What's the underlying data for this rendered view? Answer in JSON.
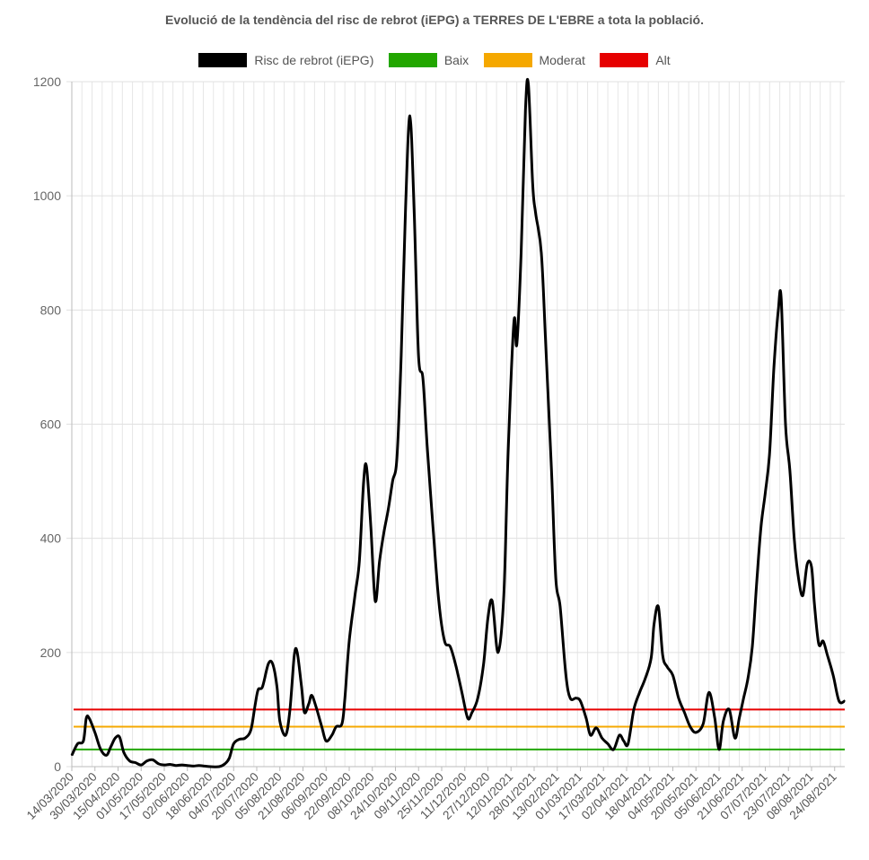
{
  "chart_data": {
    "type": "line",
    "title": "Evolució de la tendència del risc de rebrot (iEPG) a TERRES DE L'EBRE a tota la població.",
    "xlabel": "",
    "ylabel": "",
    "ylim": [
      0,
      1200
    ],
    "y_ticks": [
      0,
      200,
      400,
      600,
      800,
      1000,
      1200
    ],
    "grid": true,
    "legend_position": "top-center",
    "x_range": [
      "14/03/2020",
      "31/08/2021"
    ],
    "x_tick_labels": [
      "14/03/2020",
      "30/03/2020",
      "15/04/2020",
      "01/05/2020",
      "17/05/2020",
      "02/06/2020",
      "18/06/2020",
      "04/07/2020",
      "20/07/2020",
      "05/08/2020",
      "21/08/2020",
      "06/09/2020",
      "22/09/2020",
      "08/10/2020",
      "24/10/2020",
      "09/11/2020",
      "25/11/2020",
      "11/12/2020",
      "27/12/2020",
      "12/01/2021",
      "28/01/2021",
      "13/02/2021",
      "01/03/2021",
      "17/03/2021",
      "02/04/2021",
      "18/04/2021",
      "04/05/2021",
      "20/05/2021",
      "05/06/2021",
      "21/06/2021",
      "07/07/2021",
      "23/07/2021",
      "08/08/2021",
      "24/08/2021"
    ],
    "series": [
      {
        "name": "Risc de rebrot (iEPG)",
        "color": "#000000",
        "points": [
          [
            "14/03/2020",
            20
          ],
          [
            "18/03/2020",
            40
          ],
          [
            "22/03/2020",
            45
          ],
          [
            "24/03/2020",
            85
          ],
          [
            "26/03/2020",
            85
          ],
          [
            "30/03/2020",
            60
          ],
          [
            "03/04/2020",
            30
          ],
          [
            "07/04/2020",
            20
          ],
          [
            "10/04/2020",
            35
          ],
          [
            "13/04/2020",
            50
          ],
          [
            "16/04/2020",
            52
          ],
          [
            "19/04/2020",
            25
          ],
          [
            "23/04/2020",
            10
          ],
          [
            "27/04/2020",
            7
          ],
          [
            "01/05/2020",
            3
          ],
          [
            "05/05/2020",
            10
          ],
          [
            "09/05/2020",
            12
          ],
          [
            "13/05/2020",
            5
          ],
          [
            "17/05/2020",
            3
          ],
          [
            "21/05/2020",
            4
          ],
          [
            "25/05/2020",
            2
          ],
          [
            "29/05/2020",
            3
          ],
          [
            "02/06/2020",
            2
          ],
          [
            "06/06/2020",
            1
          ],
          [
            "10/06/2020",
            2
          ],
          [
            "14/06/2020",
            1
          ],
          [
            "18/06/2020",
            0
          ],
          [
            "24/06/2020",
            0
          ],
          [
            "28/06/2020",
            5
          ],
          [
            "01/07/2020",
            15
          ],
          [
            "04/07/2020",
            40
          ],
          [
            "08/07/2020",
            48
          ],
          [
            "12/07/2020",
            50
          ],
          [
            "16/07/2020",
            65
          ],
          [
            "19/07/2020",
            110
          ],
          [
            "21/07/2020",
            135
          ],
          [
            "24/07/2020",
            140
          ],
          [
            "28/07/2020",
            180
          ],
          [
            "31/07/2020",
            180
          ],
          [
            "03/08/2020",
            140
          ],
          [
            "05/08/2020",
            80
          ],
          [
            "09/08/2020",
            55
          ],
          [
            "12/08/2020",
            100
          ],
          [
            "15/08/2020",
            195
          ],
          [
            "17/08/2020",
            200
          ],
          [
            "20/08/2020",
            140
          ],
          [
            "22/08/2020",
            95
          ],
          [
            "25/08/2020",
            110
          ],
          [
            "27/08/2020",
            125
          ],
          [
            "30/08/2020",
            105
          ],
          [
            "03/09/2020",
            70
          ],
          [
            "06/09/2020",
            45
          ],
          [
            "10/09/2020",
            55
          ],
          [
            "13/09/2020",
            70
          ],
          [
            "17/09/2020",
            75
          ],
          [
            "19/09/2020",
            120
          ],
          [
            "22/09/2020",
            220
          ],
          [
            "26/09/2020",
            300
          ],
          [
            "29/09/2020",
            360
          ],
          [
            "02/10/2020",
            500
          ],
          [
            "04/10/2020",
            525
          ],
          [
            "07/10/2020",
            420
          ],
          [
            "10/10/2020",
            290
          ],
          [
            "13/10/2020",
            360
          ],
          [
            "16/10/2020",
            410
          ],
          [
            "19/10/2020",
            450
          ],
          [
            "22/10/2020",
            500
          ],
          [
            "25/10/2020",
            540
          ],
          [
            "28/10/2020",
            720
          ],
          [
            "31/10/2020",
            980
          ],
          [
            "03/11/2020",
            1140
          ],
          [
            "06/11/2020",
            970
          ],
          [
            "09/11/2020",
            720
          ],
          [
            "12/11/2020",
            680
          ],
          [
            "15/11/2020",
            560
          ],
          [
            "19/11/2020",
            420
          ],
          [
            "23/11/2020",
            290
          ],
          [
            "27/11/2020",
            220
          ],
          [
            "01/12/2020",
            210
          ],
          [
            "05/12/2020",
            175
          ],
          [
            "09/12/2020",
            130
          ],
          [
            "13/12/2020",
            85
          ],
          [
            "16/12/2020",
            95
          ],
          [
            "20/12/2020",
            120
          ],
          [
            "24/12/2020",
            180
          ],
          [
            "27/12/2020",
            260
          ],
          [
            "30/12/2020",
            290
          ],
          [
            "03/01/2021",
            200
          ],
          [
            "07/01/2021",
            300
          ],
          [
            "10/01/2021",
            550
          ],
          [
            "14/01/2021",
            780
          ],
          [
            "16/01/2021",
            740
          ],
          [
            "19/01/2021",
            900
          ],
          [
            "22/01/2021",
            1150
          ],
          [
            "24/01/2021",
            1195
          ],
          [
            "27/01/2021",
            1020
          ],
          [
            "29/01/2021",
            970
          ],
          [
            "02/02/2021",
            900
          ],
          [
            "05/02/2021",
            740
          ],
          [
            "09/02/2021",
            520
          ],
          [
            "12/02/2021",
            330
          ],
          [
            "15/02/2021",
            280
          ],
          [
            "19/02/2021",
            160
          ],
          [
            "22/02/2021",
            120
          ],
          [
            "26/02/2021",
            120
          ],
          [
            "01/03/2021",
            115
          ],
          [
            "05/03/2021",
            85
          ],
          [
            "08/03/2021",
            55
          ],
          [
            "12/03/2021",
            68
          ],
          [
            "16/03/2021",
            50
          ],
          [
            "20/03/2021",
            40
          ],
          [
            "24/03/2021",
            30
          ],
          [
            "28/03/2021",
            55
          ],
          [
            "31/03/2021",
            45
          ],
          [
            "03/04/2021",
            40
          ],
          [
            "07/04/2021",
            100
          ],
          [
            "11/04/2021",
            130
          ],
          [
            "15/04/2021",
            155
          ],
          [
            "19/04/2021",
            190
          ],
          [
            "21/04/2021",
            250
          ],
          [
            "24/04/2021",
            280
          ],
          [
            "27/04/2021",
            195
          ],
          [
            "30/04/2021",
            175
          ],
          [
            "04/05/2021",
            160
          ],
          [
            "08/05/2021",
            120
          ],
          [
            "12/05/2021",
            95
          ],
          [
            "16/05/2021",
            70
          ],
          [
            "20/05/2021",
            60
          ],
          [
            "25/05/2021",
            75
          ],
          [
            "29/05/2021",
            130
          ],
          [
            "02/06/2021",
            85
          ],
          [
            "05/06/2021",
            30
          ],
          [
            "08/06/2021",
            80
          ],
          [
            "12/06/2021",
            100
          ],
          [
            "16/06/2021",
            50
          ],
          [
            "19/06/2021",
            85
          ],
          [
            "22/06/2021",
            120
          ],
          [
            "25/06/2021",
            155
          ],
          [
            "28/06/2021",
            210
          ],
          [
            "01/07/2021",
            320
          ],
          [
            "04/07/2021",
            420
          ],
          [
            "07/07/2021",
            480
          ],
          [
            "10/07/2021",
            550
          ],
          [
            "13/07/2021",
            700
          ],
          [
            "16/07/2021",
            800
          ],
          [
            "18/07/2021",
            820
          ],
          [
            "21/07/2021",
            600
          ],
          [
            "24/07/2021",
            520
          ],
          [
            "27/07/2021",
            400
          ],
          [
            "30/07/2021",
            330
          ],
          [
            "02/08/2021",
            300
          ],
          [
            "05/08/2021",
            355
          ],
          [
            "08/08/2021",
            350
          ],
          [
            "10/08/2021",
            285
          ],
          [
            "13/08/2021",
            215
          ],
          [
            "16/08/2021",
            220
          ],
          [
            "19/08/2021",
            195
          ],
          [
            "23/08/2021",
            160
          ],
          [
            "27/08/2021",
            115
          ],
          [
            "31/08/2021",
            115
          ]
        ]
      },
      {
        "name": "Baix",
        "color": "#22a600",
        "constant": 30
      },
      {
        "name": "Moderat",
        "color": "#f5a800",
        "constant": 70
      },
      {
        "name": "Alt",
        "color": "#e60000",
        "constant": 100
      }
    ]
  }
}
